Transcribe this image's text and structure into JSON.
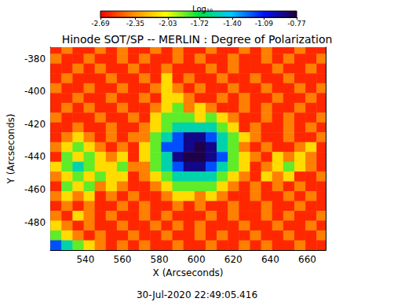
{
  "chart_data": {
    "type": "heatmap",
    "title": "Hinode SOT/SP -- MERLIN : Degree of Polarization",
    "x_label": "X (Arcseconds)",
    "y_label": "Y (Arcseconds)",
    "annotations": [
      "30-Jul-2020 22:49:05.416"
    ],
    "xlim": [
      521,
      670
    ],
    "xticks": [
      540,
      560,
      580,
      600,
      620,
      640,
      660
    ],
    "ylim": [
      -497,
      -373
    ],
    "yticks": [
      -480,
      -460,
      -440,
      -420,
      -400,
      -380
    ],
    "grid": false,
    "colorbar": {
      "label": "Log₁₀",
      "range": [
        -2.69,
        -0.77
      ],
      "ticks": [
        -2.69,
        -2.35,
        -2.03,
        -1.72,
        {
          "value": -1.4,
          "label": "-1.40"
        },
        -1.09,
        -0.77
      ],
      "colors": [
        "#ff0000",
        "#ff8c00",
        "#ffff00",
        "#00e040",
        "#00c8ff",
        "#0010ff",
        "#200038"
      ]
    },
    "x": [
      524,
      530,
      536,
      542,
      548,
      554,
      560,
      566,
      572,
      578,
      584,
      590,
      596,
      602,
      608,
      614,
      620,
      626,
      632,
      638,
      644,
      650,
      656,
      662,
      668
    ],
    "y": [
      -374,
      -380,
      -386,
      -392,
      -398,
      -404,
      -410,
      -416,
      -422,
      -428,
      -434,
      -440,
      -446,
      -452,
      -458,
      -464,
      -470,
      -476,
      -482,
      -488,
      -494
    ],
    "cells": [
      [
        -2.6,
        -2.4,
        -2.6,
        -2.6,
        -2.4,
        -2.6,
        -2.4,
        -2.6,
        -2.6,
        -2.4,
        -2.6,
        -2.4,
        -2.6,
        -2.6,
        -2.4,
        -2.6,
        -2.6,
        -2.4,
        -2.6,
        -2.4,
        -2.6,
        -2.6,
        -2.4,
        -2.6,
        -2.6
      ],
      [
        -2.4,
        -2.6,
        -2.6,
        -2.4,
        -2.6,
        -2.6,
        -2.4,
        -2.6,
        -2.4,
        -2.6,
        -2.6,
        -2.4,
        -2.6,
        -2.4,
        -2.6,
        -2.6,
        -2.4,
        -2.6,
        -2.6,
        -2.4,
        -2.6,
        -2.4,
        -2.6,
        -2.6,
        -2.4
      ],
      [
        -2.6,
        -2.6,
        -2.4,
        -2.6,
        -2.4,
        -2.6,
        -2.6,
        -2.4,
        -2.6,
        -2.6,
        -2.4,
        -2.6,
        -2.6,
        -2.6,
        -2.4,
        -2.6,
        -2.4,
        -2.6,
        -2.6,
        -2.6,
        -2.4,
        -2.6,
        -2.6,
        -2.4,
        -2.6
      ],
      [
        -2.6,
        -2.4,
        -2.6,
        -2.6,
        -2.6,
        -2.4,
        -2.6,
        -2.6,
        -2.4,
        -2.6,
        -2.15,
        -2.6,
        -2.4,
        -2.6,
        -2.6,
        -2.4,
        -2.6,
        -2.6,
        -2.4,
        -2.6,
        -2.6,
        -2.4,
        -2.6,
        -2.6,
        -2.6
      ],
      [
        -2.4,
        -2.6,
        -2.6,
        -2.4,
        -2.6,
        -2.6,
        -2.4,
        -2.6,
        -2.6,
        -2.4,
        -2.15,
        -2.4,
        -2.6,
        -2.4,
        -2.6,
        -2.6,
        -2.4,
        -2.6,
        -2.6,
        -2.4,
        -2.6,
        -2.6,
        -2.4,
        -2.6,
        -2.4
      ],
      [
        -2.6,
        -2.6,
        -2.4,
        -2.6,
        -2.6,
        -2.4,
        -2.6,
        -2.6,
        -2.4,
        -2.6,
        -2.15,
        -2.15,
        -2.4,
        -2.6,
        -2.6,
        -2.4,
        -2.6,
        -2.4,
        -2.6,
        -2.6,
        -2.4,
        -2.6,
        -2.6,
        -2.4,
        -2.6
      ],
      [
        -2.6,
        -2.4,
        -2.6,
        -2.4,
        -2.6,
        -2.6,
        -2.4,
        -2.6,
        -2.6,
        -2.4,
        -2.15,
        -1.85,
        -2.4,
        -2.15,
        -2.4,
        -2.6,
        -2.6,
        -2.4,
        -2.6,
        -2.4,
        -2.6,
        -2.6,
        -2.4,
        -2.6,
        -2.6
      ],
      [
        -2.4,
        -2.6,
        -2.6,
        -2.6,
        -2.4,
        -2.6,
        -2.6,
        -2.4,
        -2.6,
        -2.15,
        -1.85,
        -1.85,
        -1.85,
        -2.15,
        -1.85,
        -2.15,
        -2.4,
        -2.6,
        -2.6,
        -2.4,
        -2.6,
        -2.4,
        -2.6,
        -2.6,
        -2.4
      ],
      [
        -2.6,
        -2.6,
        -2.4,
        -2.6,
        -2.6,
        -2.4,
        -2.6,
        -2.6,
        -2.4,
        -2.15,
        -1.85,
        -1.55,
        -1.55,
        -1.55,
        -1.55,
        -1.85,
        -2.15,
        -2.6,
        -2.4,
        -2.6,
        -2.6,
        -2.4,
        -2.6,
        -2.4,
        -2.6
      ],
      [
        -2.6,
        -2.4,
        -2.15,
        -2.4,
        -2.6,
        -2.4,
        -2.6,
        -2.4,
        -2.4,
        -1.85,
        -1.55,
        -1.2,
        -0.9,
        -0.9,
        -1.2,
        -1.55,
        -1.85,
        -2.15,
        -2.4,
        -2.6,
        -2.6,
        -2.4,
        -2.6,
        -2.6,
        -2.4
      ],
      [
        -2.4,
        -2.15,
        -1.85,
        -2.15,
        -2.4,
        -2.6,
        -2.4,
        -2.6,
        -2.15,
        -1.85,
        -1.2,
        -1.2,
        -0.9,
        -0.8,
        -0.9,
        -1.55,
        -1.85,
        -2.4,
        -2.6,
        -2.4,
        -2.6,
        -2.6,
        -2.4,
        -2.15,
        -2.6
      ],
      [
        -2.6,
        -1.85,
        -2.15,
        -1.85,
        -2.15,
        -2.4,
        -2.15,
        -2.6,
        -2.15,
        -1.85,
        -1.55,
        -0.9,
        -0.8,
        -0.8,
        -0.9,
        -1.2,
        -1.85,
        -2.15,
        -2.4,
        -2.6,
        -2.15,
        -2.4,
        -2.15,
        -2.4,
        -2.6
      ],
      [
        -2.15,
        -1.85,
        -1.55,
        -1.85,
        -2.15,
        -2.15,
        -1.85,
        -2.4,
        -2.4,
        -1.85,
        -1.55,
        -1.2,
        -0.9,
        -0.9,
        -1.2,
        -1.55,
        -1.85,
        -2.15,
        -2.6,
        -2.4,
        -2.15,
        -1.85,
        -2.15,
        -2.4,
        -2.6
      ],
      [
        -2.4,
        -2.15,
        -1.85,
        -2.15,
        -1.85,
        -2.15,
        -2.15,
        -2.6,
        -2.4,
        -2.15,
        -1.85,
        -1.55,
        -1.55,
        -1.55,
        -1.55,
        -1.85,
        -2.15,
        -2.4,
        -2.6,
        -2.15,
        -2.4,
        -2.15,
        -2.6,
        -2.6,
        -2.4
      ],
      [
        -2.6,
        -1.85,
        -2.15,
        -1.85,
        -2.4,
        -2.15,
        -2.4,
        -2.6,
        -2.6,
        -2.4,
        -2.15,
        -1.85,
        -1.85,
        -1.85,
        -1.85,
        -2.15,
        -2.4,
        -2.6,
        -2.4,
        -2.6,
        -2.4,
        -2.6,
        -2.4,
        -2.6,
        -2.6
      ],
      [
        -2.4,
        -2.15,
        -2.4,
        -2.15,
        -2.6,
        -2.4,
        -2.6,
        -2.4,
        -2.6,
        -2.6,
        -2.4,
        -2.15,
        -2.15,
        -2.4,
        -2.15,
        -2.4,
        -2.6,
        -2.6,
        -2.4,
        -2.6,
        -2.6,
        -2.4,
        -2.6,
        -2.4,
        -2.6
      ],
      [
        -2.6,
        -2.4,
        -2.6,
        -2.4,
        -2.6,
        -2.6,
        -2.4,
        -2.6,
        -2.4,
        -2.6,
        -2.6,
        -2.4,
        -2.6,
        -2.4,
        -2.6,
        -2.6,
        -2.4,
        -2.6,
        -2.6,
        -2.4,
        -2.6,
        -2.6,
        -2.4,
        -2.6,
        -2.6
      ],
      [
        -2.4,
        -2.6,
        -2.15,
        -2.4,
        -2.6,
        -2.4,
        -2.6,
        -2.6,
        -2.4,
        -2.6,
        -2.4,
        -2.6,
        -2.6,
        -2.6,
        -2.4,
        -2.6,
        -2.4,
        -2.6,
        -2.6,
        -2.4,
        -2.6,
        -2.4,
        -2.6,
        -2.6,
        -2.4
      ],
      [
        -2.15,
        -2.4,
        -2.6,
        -2.4,
        -2.6,
        -2.6,
        -2.4,
        -2.6,
        -2.6,
        -2.4,
        -2.6,
        -2.4,
        -2.6,
        -2.4,
        -2.6,
        -2.6,
        -2.6,
        -2.4,
        -2.6,
        -2.6,
        -2.4,
        -2.6,
        -2.6,
        -2.4,
        -2.6
      ],
      [
        -1.85,
        -2.15,
        -2.4,
        -2.6,
        -2.4,
        -2.6,
        -2.6,
        -2.4,
        -2.6,
        -2.6,
        -2.4,
        -2.6,
        -2.6,
        -2.4,
        -2.6,
        -2.4,
        -2.6,
        -2.6,
        -2.4,
        -2.6,
        -2.6,
        -2.4,
        -2.6,
        -2.6,
        -2.4
      ],
      [
        -1.2,
        -1.55,
        -1.85,
        -2.15,
        -2.4,
        -2.6,
        -2.4,
        -2.6,
        -2.4,
        -2.6,
        -2.6,
        -2.4,
        -2.6,
        -2.6,
        -2.4,
        -2.6,
        -2.6,
        -2.4,
        -2.6,
        -2.4,
        -2.6,
        -2.6,
        -2.4,
        -2.6,
        -2.6
      ]
    ]
  }
}
